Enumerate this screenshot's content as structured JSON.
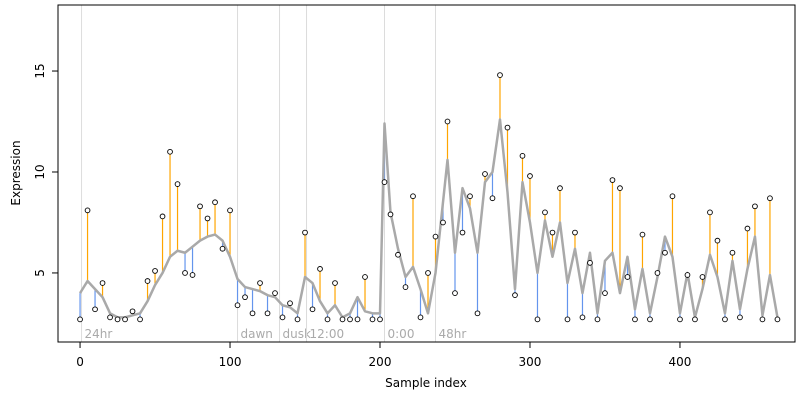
{
  "chart_data": {
    "type": "scatter",
    "xlabel": "Sample index",
    "ylabel": "Expression",
    "xlim": [
      -14.7,
      476.7
    ],
    "ylim": [
      1.58,
      18.27
    ],
    "xticks": [
      0,
      100,
      200,
      300,
      400
    ],
    "yticks": [
      5,
      10,
      15
    ],
    "above_color": "#FFA500",
    "below_color": "#6495ED",
    "fit_color": "#A9A9A9",
    "annotations": [
      {
        "x": 1,
        "label": "24hr"
      },
      {
        "x": 105,
        "label": "dawn"
      },
      {
        "x": 133,
        "label": "dusk"
      },
      {
        "x": 151,
        "label": "12:00"
      },
      {
        "x": 203,
        "label": "0:00"
      },
      {
        "x": 237,
        "label": "48hr"
      }
    ],
    "x": [
      0,
      5,
      10,
      15,
      20,
      25,
      30,
      35,
      40,
      45,
      50,
      55,
      60,
      65,
      70,
      75,
      80,
      85,
      90,
      95,
      100,
      105,
      110,
      115,
      120,
      125,
      130,
      135,
      140,
      145,
      150,
      155,
      160,
      165,
      170,
      175,
      180,
      185,
      190,
      195,
      200,
      203,
      207,
      212,
      217,
      222,
      227,
      232,
      237,
      242,
      245,
      250,
      255,
      260,
      265,
      270,
      275,
      280,
      285,
      290,
      295,
      300,
      305,
      310,
      315,
      320,
      325,
      330,
      335,
      340,
      345,
      350,
      355,
      360,
      365,
      370,
      375,
      380,
      385,
      390,
      395,
      400,
      405,
      410,
      415,
      420,
      425,
      430,
      435,
      440,
      445,
      450,
      455,
      460,
      465
    ],
    "values": [
      2.7,
      8.1,
      3.2,
      4.5,
      2.8,
      2.7,
      2.7,
      3.1,
      2.7,
      4.6,
      5.1,
      7.8,
      11.0,
      9.4,
      5.0,
      4.9,
      8.3,
      7.7,
      8.5,
      6.2,
      8.1,
      3.4,
      3.8,
      3.0,
      4.5,
      3.0,
      4.0,
      2.8,
      3.5,
      2.7,
      7.0,
      3.2,
      5.2,
      2.7,
      4.5,
      2.7,
      2.7,
      2.7,
      4.8,
      2.7,
      2.7,
      9.5,
      7.9,
      5.9,
      4.3,
      8.8,
      2.8,
      5.0,
      6.8,
      7.5,
      12.5,
      4.0,
      7.0,
      8.8,
      3.0,
      9.9,
      8.7,
      14.8,
      12.2,
      3.9,
      10.8,
      9.8,
      2.7,
      8.0,
      7.0,
      9.2,
      2.7,
      7.0,
      2.8,
      5.5,
      2.7,
      4.0,
      9.6,
      9.2,
      4.8,
      2.7,
      6.9,
      2.7,
      5.0,
      6.0,
      8.8,
      2.7,
      4.9,
      2.7,
      4.8,
      8.0,
      6.6,
      2.7,
      6.0,
      2.8,
      7.2,
      8.3,
      2.7,
      8.7,
      2.7
    ],
    "fit": [
      4.0,
      4.6,
      4.2,
      3.8,
      3.0,
      2.8,
      2.8,
      2.9,
      3.0,
      3.6,
      4.4,
      5.0,
      5.8,
      6.1,
      6.0,
      6.3,
      6.6,
      6.8,
      6.9,
      6.6,
      5.8,
      4.7,
      4.3,
      4.2,
      4.1,
      3.9,
      3.8,
      3.4,
      3.3,
      3.0,
      4.8,
      4.5,
      3.6,
      3.0,
      3.4,
      2.8,
      3.0,
      3.8,
      3.1,
      3.0,
      3.0,
      12.4,
      8.0,
      6.2,
      4.8,
      5.3,
      4.2,
      3.0,
      5.0,
      8.5,
      10.6,
      6.0,
      9.2,
      8.2,
      6.0,
      9.5,
      10.0,
      12.6,
      9.0,
      4.2,
      9.5,
      7.5,
      5.0,
      7.6,
      5.8,
      7.5,
      4.5,
      6.2,
      4.0,
      6.0,
      3.0,
      5.6,
      6.0,
      4.0,
      5.8,
      3.2,
      5.2,
      3.0,
      4.8,
      6.8,
      5.8,
      3.0,
      5.0,
      2.8,
      4.2,
      5.9,
      4.8,
      3.0,
      5.6,
      3.2,
      5.2,
      6.8,
      2.9,
      4.9,
      2.8
    ]
  }
}
